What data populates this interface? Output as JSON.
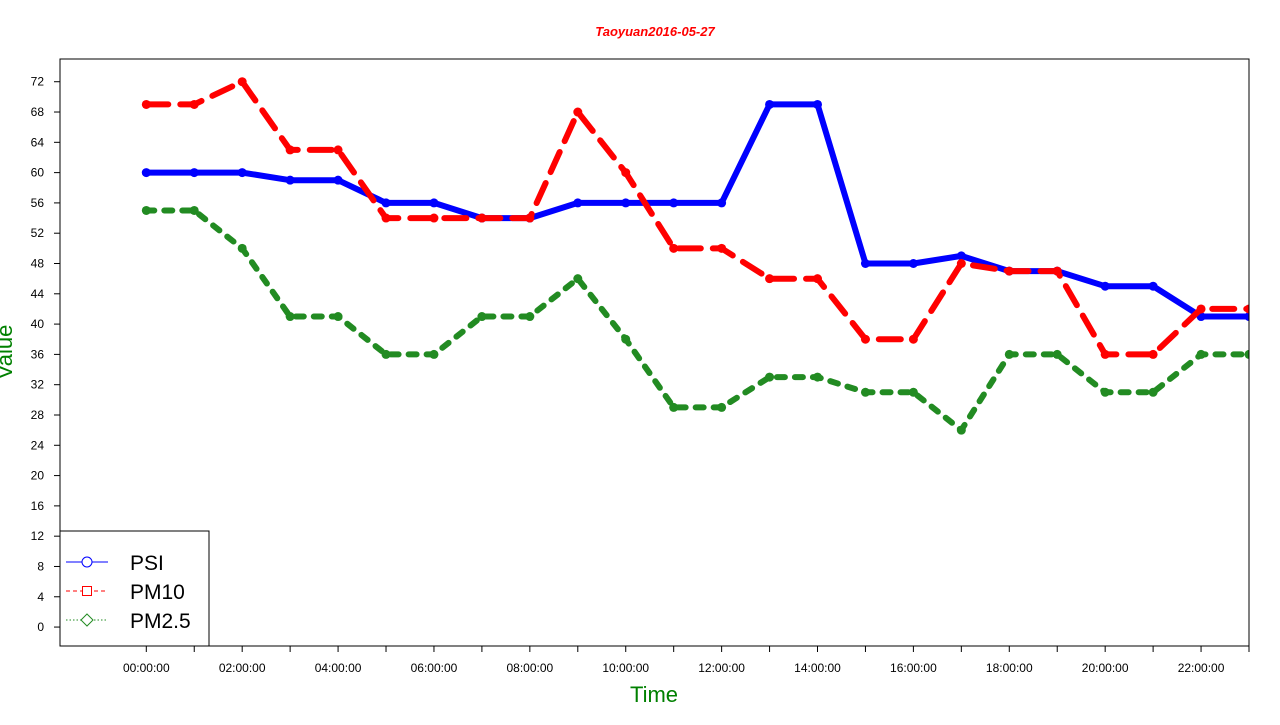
{
  "chart_data": {
    "type": "line",
    "title": "Taoyuan2016-05-27",
    "xlabel": "Time",
    "ylabel": "Value",
    "ylim": [
      -2.5,
      75
    ],
    "yticks": [
      0,
      4,
      8,
      12,
      16,
      20,
      24,
      28,
      32,
      36,
      40,
      44,
      48,
      52,
      56,
      60,
      64,
      68,
      72
    ],
    "xlim": [
      -1.8,
      23
    ],
    "x": [
      "00:00:00",
      "01:00:00",
      "02:00:00",
      "03:00:00",
      "04:00:00",
      "05:00:00",
      "06:00:00",
      "07:00:00",
      "08:00:00",
      "09:00:00",
      "10:00:00",
      "11:00:00",
      "12:00:00",
      "13:00:00",
      "14:00:00",
      "15:00:00",
      "16:00:00",
      "17:00:00",
      "18:00:00",
      "19:00:00",
      "20:00:00",
      "21:00:00",
      "22:00:00",
      "23:00:00"
    ],
    "xtick_labels": [
      "00:00:00",
      "02:00:00",
      "04:00:00",
      "06:00:00",
      "08:00:00",
      "10:00:00",
      "12:00:00",
      "14:00:00",
      "16:00:00",
      "18:00:00",
      "20:00:00",
      "22:00:00"
    ],
    "series": [
      {
        "name": "PSI",
        "color": "#0000ff",
        "style": "solid",
        "values": [
          60,
          60,
          60,
          59,
          59,
          56,
          56,
          54,
          54,
          56,
          56,
          56,
          56,
          69,
          69,
          48,
          48,
          49,
          47,
          47,
          45,
          45,
          41,
          41
        ]
      },
      {
        "name": "PM10",
        "color": "#ff0000",
        "style": "dashed",
        "values": [
          69,
          69,
          72,
          63,
          63,
          54,
          54,
          54,
          54,
          68,
          60,
          50,
          50,
          46,
          46,
          38,
          38,
          48,
          47,
          47,
          36,
          36,
          42,
          42
        ]
      },
      {
        "name": "PM2.5",
        "color": "#228b22",
        "style": "dotted",
        "values": [
          55,
          55,
          50,
          41,
          41,
          36,
          36,
          41,
          41,
          46,
          38,
          29,
          29,
          33,
          33,
          31,
          31,
          26,
          36,
          36,
          31,
          31,
          36,
          36
        ]
      }
    ],
    "legend": {
      "position": "bottom-left",
      "entries": [
        "PSI",
        "PM10",
        "PM2.5"
      ]
    },
    "grid": false,
    "colors": {
      "title": "#ff0000",
      "axis_label": "#008000",
      "axis": "#000000"
    }
  }
}
